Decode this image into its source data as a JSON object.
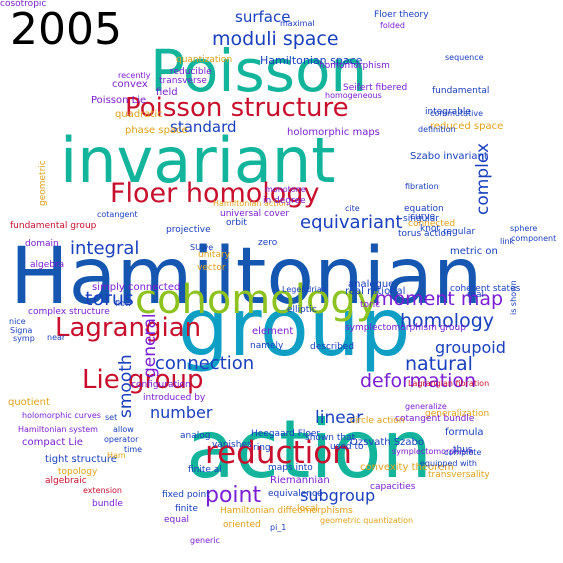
{
  "year_label": "2005",
  "colors": {
    "blue": "#1a3fbf",
    "teal": "#17b3a3",
    "red": "#c8102e",
    "green": "#8dc21f",
    "purple": "#7a1fd6",
    "gold": "#e0a21a",
    "cyan": "#00a6c8",
    "navy": "#0b2f8a"
  },
  "words": [
    {
      "text": "Hamiltonian",
      "color": "#1557b0"
    },
    {
      "text": "group",
      "color": "#0f9fc4"
    },
    {
      "text": "action",
      "color": "#12b59c"
    },
    {
      "text": "invariant",
      "color": "#12b59c"
    },
    {
      "text": "Poisson",
      "color": "#12b59c"
    },
    {
      "text": "cohomology",
      "color": "#8dc21f"
    },
    {
      "text": "Poisson structure",
      "color": "#c8102e"
    },
    {
      "text": "Floer homology",
      "color": "#c8102e"
    },
    {
      "text": "Lagrangian",
      "color": "#c8102e"
    },
    {
      "text": "reduction",
      "color": "#c8102e"
    },
    {
      "text": "Lie group",
      "color": "#c8102e"
    },
    {
      "text": "moduli space",
      "color": "#1a3fbf"
    },
    {
      "text": "moment map",
      "color": "#7a1fd6"
    },
    {
      "text": "homology",
      "color": "#1a3fbf"
    },
    {
      "text": "deformation",
      "color": "#7a1fd6"
    },
    {
      "text": "point",
      "color": "#7a1fd6"
    },
    {
      "text": "torus",
      "color": "#1a3fbf"
    },
    {
      "text": "integral",
      "color": "#1a3fbf"
    },
    {
      "text": "equivariant",
      "color": "#1a3fbf"
    },
    {
      "text": "connection",
      "color": "#1a3fbf"
    },
    {
      "text": "natural",
      "color": "#1a3fbf"
    },
    {
      "text": "groupoid",
      "color": "#1a3fbf"
    },
    {
      "text": "subgroup",
      "color": "#1a3fbf"
    },
    {
      "text": "linear",
      "color": "#1a3fbf"
    },
    {
      "text": "number",
      "color": "#1a3fbf"
    },
    {
      "text": "standard",
      "color": "#1a3fbf"
    },
    {
      "text": "surface",
      "color": "#1a3fbf"
    },
    {
      "text": "smooth",
      "color": "#1a3fbf"
    },
    {
      "text": "general",
      "color": "#7a1fd6"
    },
    {
      "text": "complex",
      "color": "#1a3fbf"
    },
    {
      "text": "Hamiltonian space",
      "color": "#1a3fbf"
    },
    {
      "text": "Floer theory",
      "color": "#1a3fbf"
    },
    {
      "text": "quantization",
      "color": "#e0a21a"
    },
    {
      "text": "reducible",
      "color": "#7a1fd6"
    },
    {
      "text": "homomorphism",
      "color": "#7a1fd6"
    },
    {
      "text": "transverse",
      "color": "#7a1fd6"
    },
    {
      "text": "Poisson Lie",
      "color": "#7a1fd6"
    },
    {
      "text": "phase space",
      "color": "#e0a21a"
    },
    {
      "text": "reduced space",
      "color": "#e0a21a"
    },
    {
      "text": "holomorphic maps",
      "color": "#7a1fd6"
    },
    {
      "text": "Szabo invariant",
      "color": "#1a3fbf"
    },
    {
      "text": "fundamental",
      "color": "#1a3fbf"
    },
    {
      "text": "fundamental group",
      "color": "#c8102e"
    },
    {
      "text": "simply connected",
      "color": "#7a1fd6"
    },
    {
      "text": "complex structure",
      "color": "#7a1fd6"
    },
    {
      "text": "coherent states",
      "color": "#1a3fbf"
    },
    {
      "text": "generalization",
      "color": "#e0a21a"
    },
    {
      "text": "symplectomorphism group",
      "color": "#7a1fd6"
    },
    {
      "text": "Lagrangian fibration",
      "color": "#c8102e"
    },
    {
      "text": "cotangent bundle",
      "color": "#7a1fd6"
    },
    {
      "text": "Heegaard Floer",
      "color": "#1a3fbf"
    },
    {
      "text": "Ozsvath Szabo",
      "color": "#1a3fbf"
    },
    {
      "text": "convexity theorem",
      "color": "#e0a21a"
    },
    {
      "text": "capacities",
      "color": "#7a1fd6"
    },
    {
      "text": "circle action",
      "color": "#e0a21a"
    },
    {
      "text": "formula",
      "color": "#1a3fbf"
    },
    {
      "text": "Hamiltonian diffeomorphisms",
      "color": "#e0a21a"
    },
    {
      "text": "geometric quantization",
      "color": "#e0a21a"
    },
    {
      "text": "tight structure",
      "color": "#1a3fbf"
    },
    {
      "text": "topology",
      "color": "#e0a21a"
    },
    {
      "text": "algebraic",
      "color": "#c8102e"
    },
    {
      "text": "extension",
      "color": "#c8102e"
    },
    {
      "text": "bundle",
      "color": "#7a1fd6"
    },
    {
      "text": "fixed point",
      "color": "#1a3fbf"
    },
    {
      "text": "finite",
      "color": "#1a3fbf"
    },
    {
      "text": "equal",
      "color": "#7a1fd6"
    },
    {
      "text": "oriented",
      "color": "#e0a21a"
    },
    {
      "text": "local",
      "color": "#e0a21a"
    },
    {
      "text": "maps into",
      "color": "#1a3fbf"
    },
    {
      "text": "Riemannian",
      "color": "#7a1fd6"
    },
    {
      "text": "symplectomorphism",
      "color": "#7a1fd6"
    },
    {
      "text": "generalize",
      "color": "#7a1fd6"
    },
    {
      "text": "analogue",
      "color": "#1a3fbf"
    },
    {
      "text": "real",
      "color": "#1a3fbf"
    },
    {
      "text": "real rational",
      "color": "#1a3fbf"
    },
    {
      "text": "Legendrian",
      "color": "#1a3fbf"
    },
    {
      "text": "toric",
      "color": "#7a1fd6"
    },
    {
      "text": "elliptic",
      "color": "#1a3fbf"
    },
    {
      "text": "element",
      "color": "#7a1fd6"
    },
    {
      "text": "vector",
      "color": "#e0a21a"
    },
    {
      "text": "unitary",
      "color": "#e0a21a"
    },
    {
      "text": "SU ve",
      "color": "#1a3fbf"
    },
    {
      "text": "projective",
      "color": "#1a3fbf"
    },
    {
      "text": "cotangent",
      "color": "#1a3fbf"
    },
    {
      "text": "universal cover",
      "color": "#7a1fd6"
    },
    {
      "text": "Hamiltonian action",
      "color": "#e0a21a"
    },
    {
      "text": "domain",
      "color": "#7a1fd6"
    },
    {
      "text": "algebra",
      "color": "#7a1fd6"
    },
    {
      "text": "geometric",
      "color": "#e0a21a"
    },
    {
      "text": "quadratic",
      "color": "#e0a21a"
    },
    {
      "text": "convex",
      "color": "#7a1fd6"
    },
    {
      "text": "recently",
      "color": "#7a1fd6"
    },
    {
      "text": "field",
      "color": "#7a1fd6"
    },
    {
      "text": "sphere",
      "color": "#1a3fbf"
    },
    {
      "text": "link",
      "color": "#1a3fbf"
    },
    {
      "text": "knot",
      "color": "#1a3fbf"
    },
    {
      "text": "regular",
      "color": "#1a3fbf"
    },
    {
      "text": "metric on",
      "color": "#1a3fbf"
    },
    {
      "text": "curve",
      "color": "#1a3fbf"
    },
    {
      "text": "equation",
      "color": "#1a3fbf"
    },
    {
      "text": "singular",
      "color": "#1a3fbf"
    },
    {
      "text": "connected",
      "color": "#e0a21a"
    },
    {
      "text": "torus action",
      "color": "#1a3fbf"
    },
    {
      "text": "fibration",
      "color": "#1a3fbf"
    },
    {
      "text": "integrable",
      "color": "#1a3fbf"
    },
    {
      "text": "Seifert fibered",
      "color": "#7a1fd6"
    },
    {
      "text": "homogeneous",
      "color": "#7a1fd6"
    },
    {
      "text": "monotone",
      "color": "#7a1fd6"
    },
    {
      "text": "in degree",
      "color": "#7a1fd6"
    },
    {
      "text": "flow",
      "color": "#1a3fbf"
    },
    {
      "text": "allow",
      "color": "#1a3fbf"
    },
    {
      "text": "operator",
      "color": "#1a3fbf"
    },
    {
      "text": "time",
      "color": "#1a3fbf"
    },
    {
      "text": "Ham",
      "color": "#e0a21a"
    },
    {
      "text": "compact Lie",
      "color": "#7a1fd6"
    },
    {
      "text": "Hamiltonian system",
      "color": "#7a1fd6"
    },
    {
      "text": "holomorphic curves",
      "color": "#7a1fd6"
    },
    {
      "text": "quotient",
      "color": "#e0a21a"
    },
    {
      "text": "configuration",
      "color": "#7a1fd6"
    },
    {
      "text": "introduced by",
      "color": "#7a1fd6"
    },
    {
      "text": "analog",
      "color": "#1a3fbf"
    },
    {
      "text": "ring",
      "color": "#1a3fbf"
    },
    {
      "text": "vanishes",
      "color": "#1a3fbf"
    },
    {
      "text": "finite al",
      "color": "#1a3fbf"
    },
    {
      "text": "transversality",
      "color": "#e0a21a"
    },
    {
      "text": "equipped with",
      "color": "#1a3fbf"
    },
    {
      "text": "complete",
      "color": "#1a3fbf"
    },
    {
      "text": "thus",
      "color": "#1a3fbf"
    },
    {
      "text": "pi_1",
      "color": "#1a3fbf"
    },
    {
      "text": "equivalence",
      "color": "#1a3fbf"
    },
    {
      "text": "shown that",
      "color": "#1a3fbf"
    },
    {
      "text": "used to",
      "color": "#1a3fbf"
    },
    {
      "text": "namely",
      "color": "#1a3fbf"
    },
    {
      "text": "described",
      "color": "#1a3fbf"
    },
    {
      "text": "orbit",
      "color": "#1a3fbf"
    },
    {
      "text": "zero",
      "color": "#1a3fbf"
    },
    {
      "text": "cite",
      "color": "#1a3fbf"
    },
    {
      "text": "definition",
      "color": "#1a3fbf"
    },
    {
      "text": "commutative",
      "color": "#1a3fbf"
    },
    {
      "text": "maximal",
      "color": "#1a3fbf"
    },
    {
      "text": "folded",
      "color": "#7a1fd6"
    },
    {
      "text": "sequence",
      "color": "#1a3fbf"
    },
    {
      "text": "is shown",
      "color": "#1a3fbf"
    },
    {
      "text": "component",
      "color": "#1a3fbf"
    },
    {
      "text": "nice",
      "color": "#1a3fbf"
    },
    {
      "text": "Signa",
      "color": "#1a3fbf"
    },
    {
      "text": "symp",
      "color": "#1a3fbf"
    },
    {
      "text": "set",
      "color": "#1a3fbf"
    },
    {
      "text": "near",
      "color": "#1a3fbf"
    },
    {
      "text": "generic",
      "color": "#7a1fd6"
    },
    {
      "text": "cosotropic",
      "color": "#7a1fd6"
    }
  ]
}
